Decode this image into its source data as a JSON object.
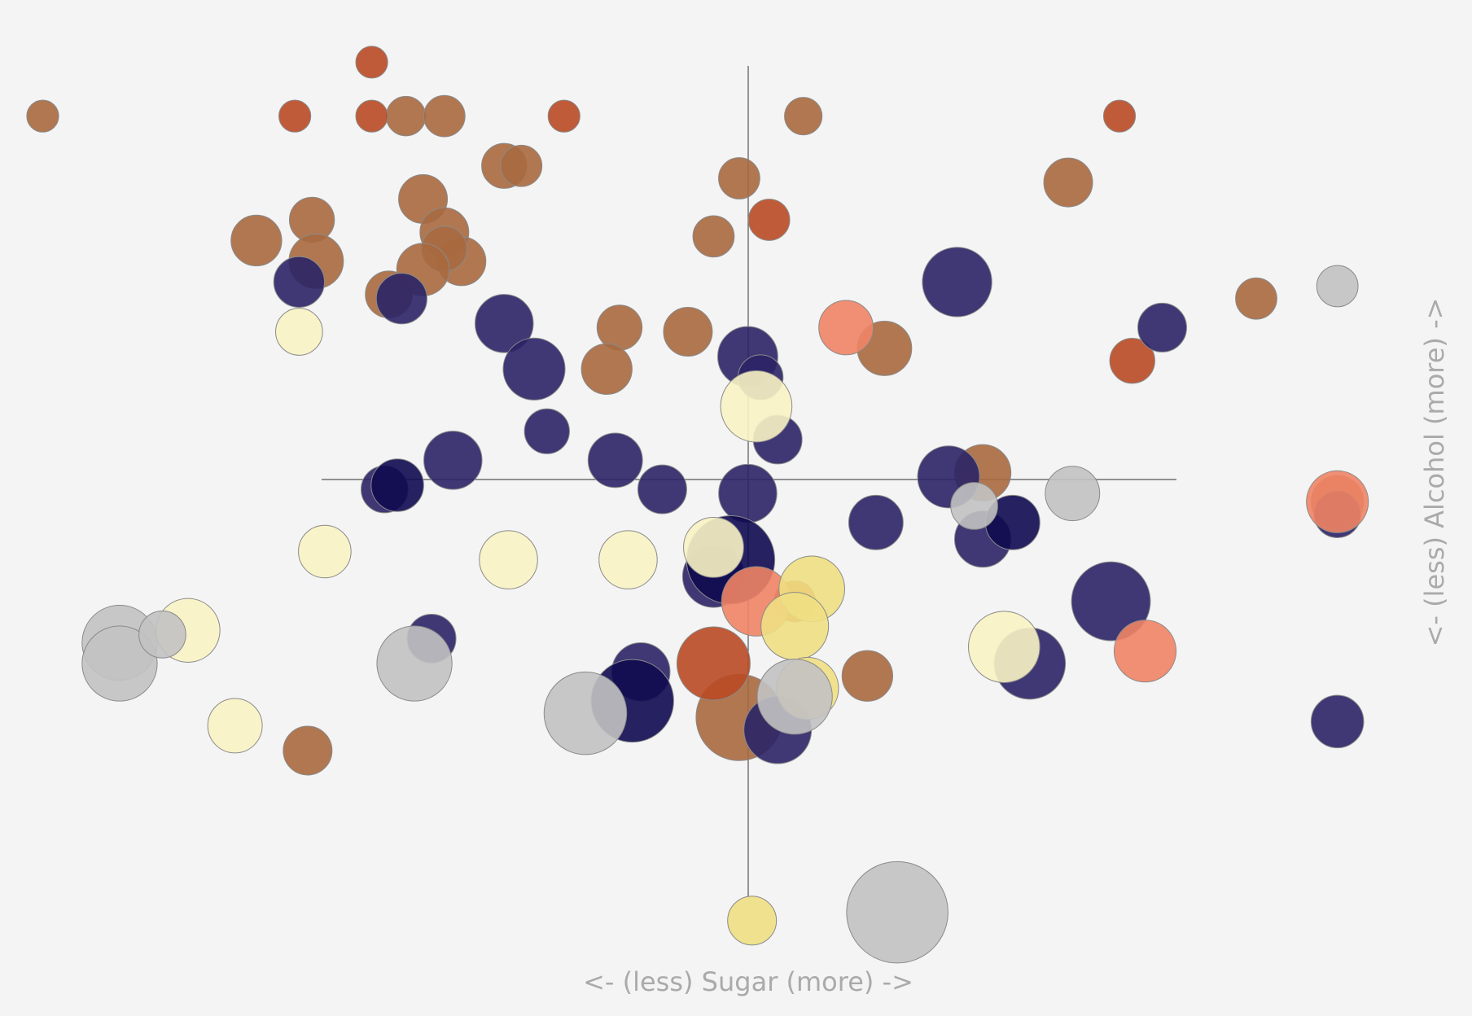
{
  "chart_data": {
    "type": "bubble",
    "x_label": "<- (less) Sugar (more) ->",
    "y_label": "<- (less) Alcohol (more) ->",
    "xlim": [
      -17.5,
      16.95
    ],
    "ylim": [
      -12.9,
      11.6
    ],
    "series": [
      {
        "color": "#a8693f",
        "x": [
          -16.5,
          -8.0,
          -7.1,
          1.3,
          -5.7,
          -5.3,
          -0.2,
          7.5,
          -7.6,
          -10.2,
          -11.5,
          -7.1,
          -0.8,
          -10.1,
          -6.7,
          -7.1,
          -7.6,
          -8.4,
          11.9,
          -3.0,
          -1.4,
          3.2,
          -3.3,
          5.5,
          13.8,
          2.8,
          -10.3,
          -0.2
        ],
        "values": [
          8.8,
          8.8,
          8.8,
          8.8,
          7.6,
          7.6,
          7.3,
          7.2,
          6.8,
          6.3,
          5.8,
          6.0,
          5.9,
          5.3,
          5.3,
          5.6,
          5.1,
          4.5,
          4.4,
          3.7,
          3.6,
          3.2,
          2.7,
          0.2,
          -0.5,
          -4.7,
          -6.5,
          -5.7
        ],
        "sizes": [
          17,
          21,
          22,
          20,
          24,
          22,
          22,
          26,
          26,
          24,
          27,
          26,
          22,
          29,
          26,
          24,
          28,
          25,
          22,
          24,
          26,
          29,
          27,
          30,
          28,
          27,
          26,
          46
        ]
      },
      {
        "color": "#b94a23",
        "x": [
          -8.8,
          -10.6,
          -8.8,
          -4.3,
          8.7,
          0.5,
          9.0,
          -0.8,
          1.1
        ],
        "values": [
          10.1,
          8.8,
          8.8,
          8.8,
          8.8,
          6.3,
          2.9,
          -4.4,
          -2.9
        ],
        "sizes": [
          17,
          17,
          17,
          17,
          17,
          22,
          24,
          39,
          22
        ]
      },
      {
        "color": "#2b2466",
        "x": [
          -10.5,
          -8.1,
          -5.7,
          -5.0,
          4.9,
          9.7,
          0,
          0.3,
          -4.7,
          0.7,
          -6.9,
          -3.1,
          -2.0,
          0,
          -8.5,
          4.7,
          3.0,
          5.5,
          13.8,
          8.5,
          -7.4,
          -2.5,
          6.6,
          0.7,
          13.8,
          -0.8
        ],
        "values": [
          4.8,
          4.4,
          3.8,
          2.7,
          4.8,
          3.7,
          3.0,
          2.5,
          1.2,
          1.0,
          0.5,
          0.5,
          -0.2,
          -0.3,
          -0.2,
          0.1,
          -1.0,
          -1.4,
          -0.8,
          -2.9,
          -3.8,
          -4.6,
          -4.4,
          -6.0,
          -5.8,
          -2.3
        ],
        "sizes": [
          27,
          27,
          31,
          33,
          37,
          26,
          32,
          24,
          24,
          26,
          31,
          29,
          26,
          31,
          25,
          33,
          29,
          30,
          25,
          42,
          26,
          31,
          38,
          36,
          28,
          33
        ]
      },
      {
        "color": "#100a50",
        "x": [
          -8.2,
          6.2,
          -0.4,
          -2.7
        ],
        "values": [
          -0.1,
          -1.0,
          -1.9,
          -5.3
        ],
        "sizes": [
          28,
          29,
          47,
          44
        ]
      },
      {
        "color": "#f08465",
        "x": [
          2.3,
          0.2,
          9.3,
          13.8
        ],
        "values": [
          3.7,
          -2.9,
          -4.1,
          -0.5
        ],
        "sizes": [
          29,
          37,
          33,
          33
        ]
      },
      {
        "color": "#faf3c4",
        "x": [
          -10.5,
          0.2,
          -9.9,
          -5.6,
          -2.8,
          -13.1,
          -12.0,
          6.0,
          -0.8
        ],
        "values": [
          3.6,
          1.8,
          -1.7,
          -1.9,
          -1.9,
          -3.6,
          -5.9,
          -4.0,
          -1.6
        ],
        "sizes": [
          25,
          38,
          28,
          31,
          31,
          34,
          29,
          38,
          32
        ]
      },
      {
        "color": "#f0df83",
        "x": [
          1.5,
          1.1,
          1.4,
          0.1
        ],
        "values": [
          -2.6,
          -3.5,
          -5.0,
          -10.6
        ],
        "sizes": [
          35,
          36,
          33,
          26
        ]
      },
      {
        "color": "#c2c2c2",
        "x": [
          13.8,
          7.6,
          5.3,
          -14.7,
          -14.7,
          -13.7,
          -7.8,
          -3.8,
          1.1,
          3.5
        ],
        "values": [
          4.7,
          -0.3,
          -0.6,
          -3.9,
          -4.4,
          -3.7,
          -4.4,
          -5.6,
          -5.2,
          -10.4
        ],
        "sizes": [
          22,
          29,
          25,
          40,
          40,
          25,
          40,
          44,
          40,
          54
        ]
      }
    ]
  }
}
